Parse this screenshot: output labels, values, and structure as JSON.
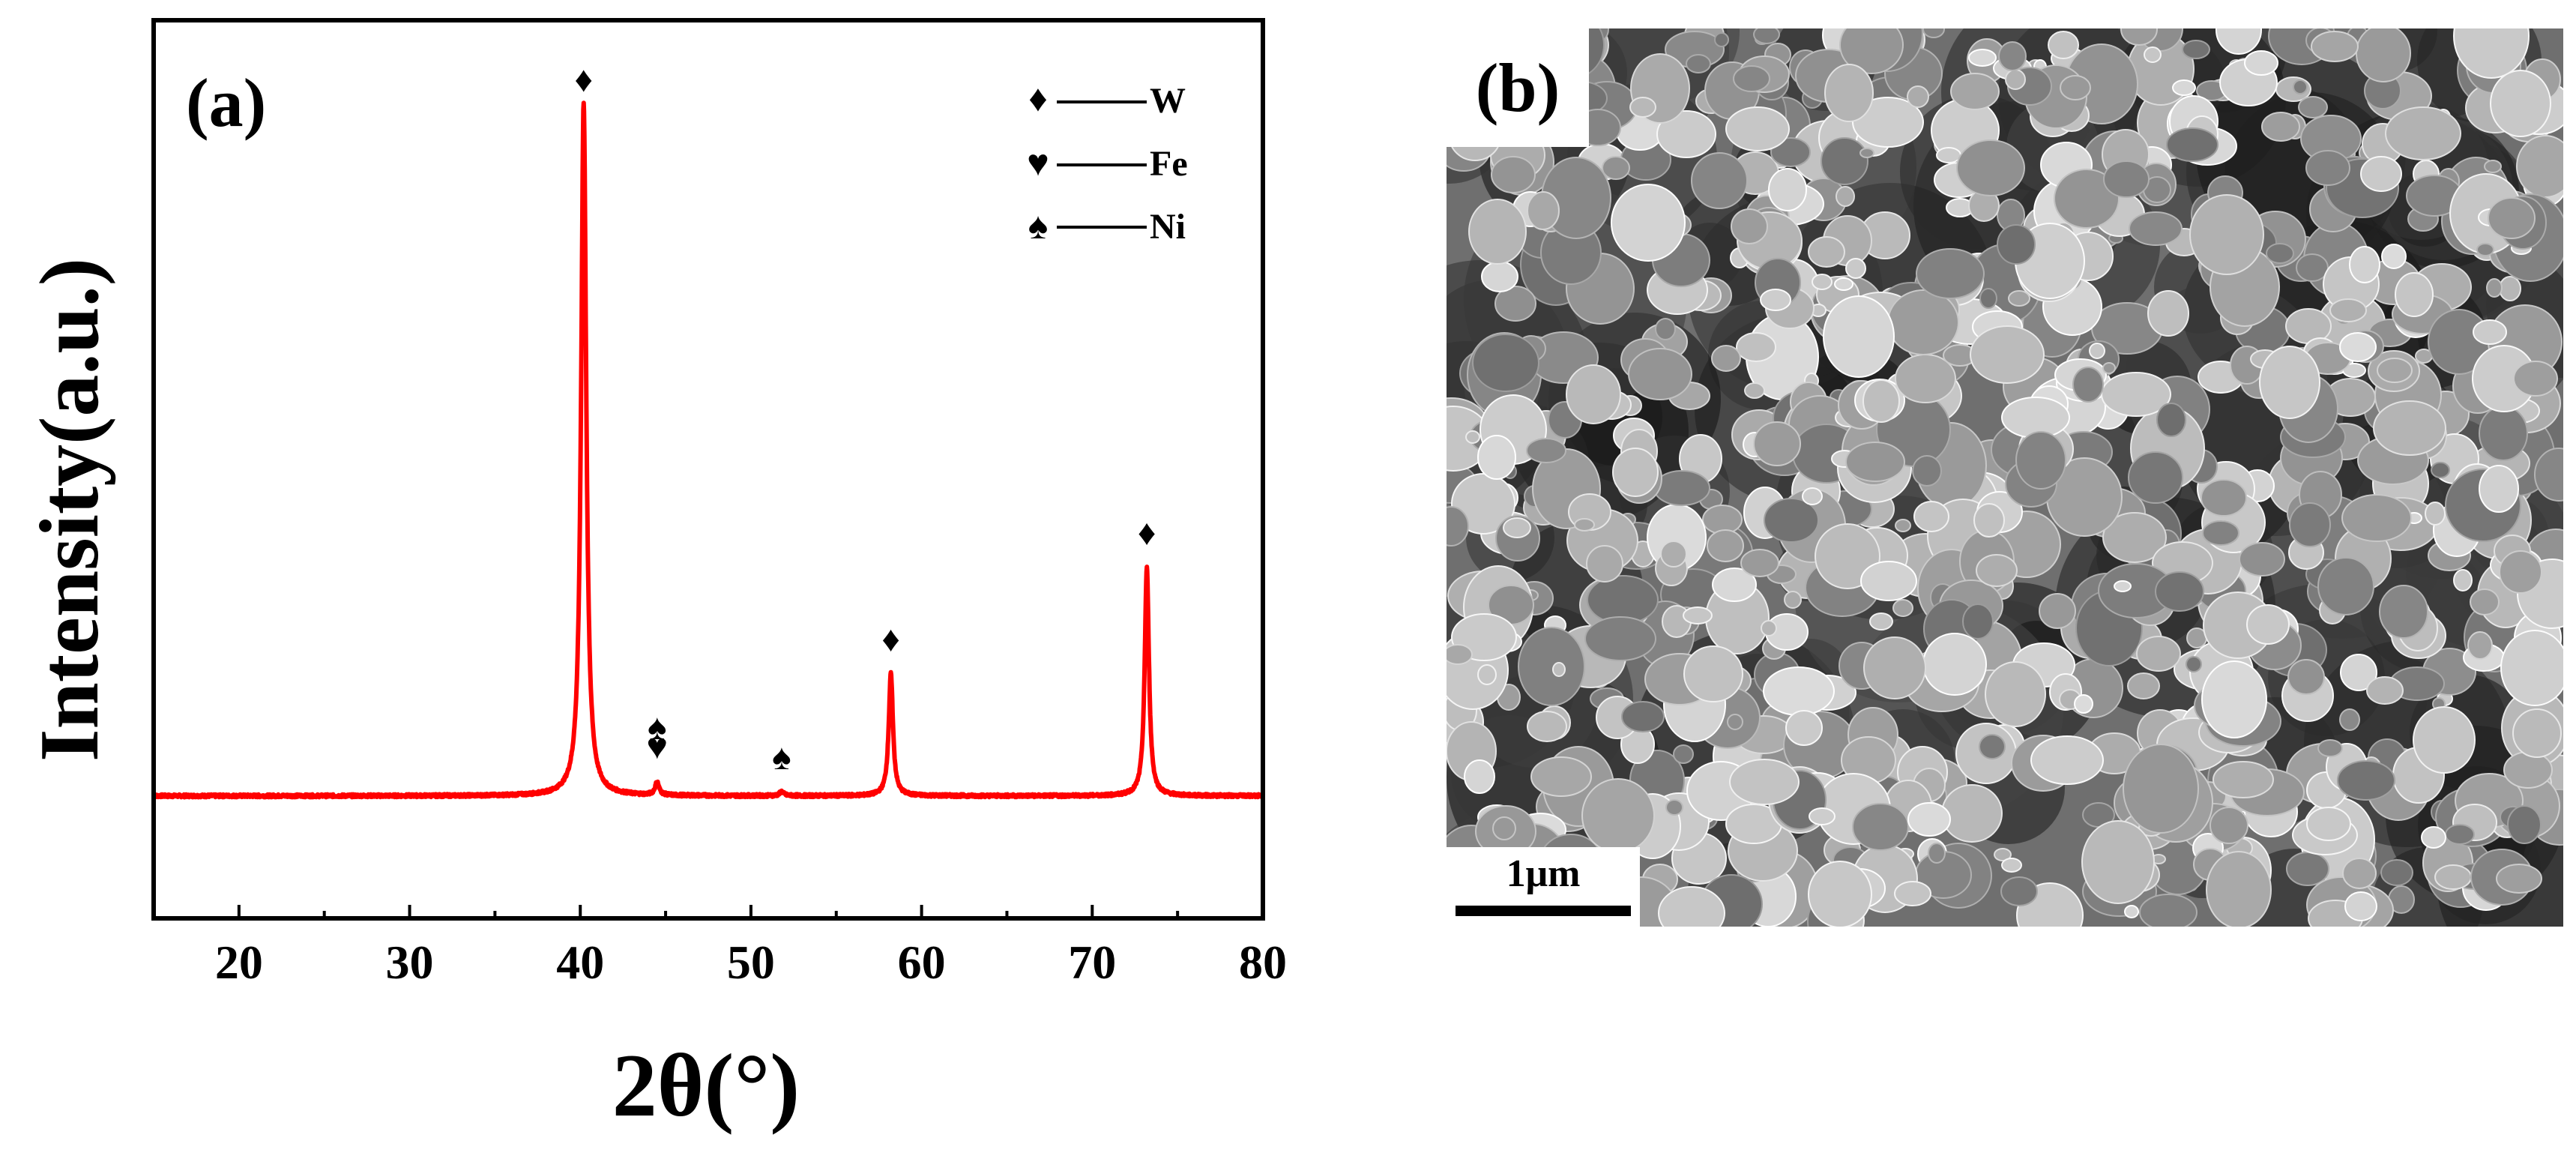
{
  "panel_a_label": "(a)",
  "panel_b_label": "(b)",
  "scale_bar_label": "1μm",
  "colors": {
    "curve": "#ff0000",
    "axes": "#000000",
    "sem_background": "#6f6f6f"
  },
  "chart_data": {
    "type": "line",
    "title": "",
    "xlabel": "2θ(°)",
    "ylabel": "Intensity(a.u.)",
    "xlim": [
      15,
      80
    ],
    "ylim": [
      0,
      110
    ],
    "x_ticks": [
      20,
      30,
      40,
      50,
      60,
      70,
      80
    ],
    "y_ticks_shown": false,
    "baseline": 15,
    "series": [
      {
        "color": "#ff0000",
        "peaks": [
          {
            "x": 40.2,
            "y": 100
          },
          {
            "x": 44.5,
            "y": 16.6
          },
          {
            "x": 51.8,
            "y": 15.5
          },
          {
            "x": 58.2,
            "y": 30
          },
          {
            "x": 73.2,
            "y": 43
          }
        ]
      }
    ],
    "peak_markers": [
      {
        "x": 40.2,
        "symbol": "♦"
      },
      {
        "x": 44.5,
        "symbol": "♥"
      },
      {
        "x": 44.5,
        "symbol": "♠"
      },
      {
        "x": 51.8,
        "symbol": "♠"
      },
      {
        "x": 58.2,
        "symbol": "♦"
      },
      {
        "x": 73.2,
        "symbol": "♦"
      }
    ],
    "legend": {
      "position": "top-right",
      "entries": [
        {
          "symbol": "♦",
          "label": "W"
        },
        {
          "symbol": "♥",
          "label": "Fe"
        },
        {
          "symbol": "♠",
          "label": "Ni"
        }
      ]
    }
  }
}
